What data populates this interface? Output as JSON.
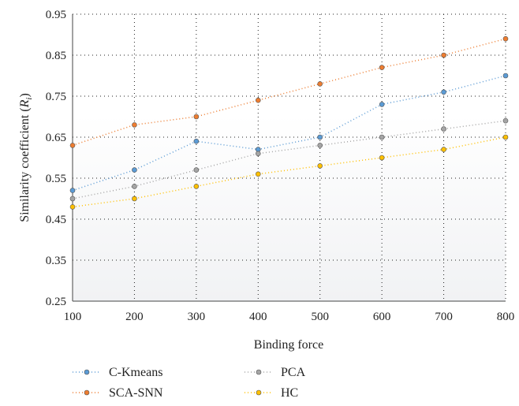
{
  "chart_data": {
    "type": "line",
    "xlabel": "Binding force",
    "ylabel_main": "Similarity coefficient (",
    "ylabel_var": "R",
    "ylabel_sub": "i",
    "ylabel_close": ")",
    "x": [
      100,
      200,
      300,
      400,
      500,
      600,
      700,
      800
    ],
    "x_ticks": [
      "100",
      "200",
      "300",
      "400",
      "500",
      "600",
      "700",
      "800"
    ],
    "xlim": [
      100,
      800
    ],
    "ylim": [
      0.25,
      0.95
    ],
    "y_ticks": [
      0.25,
      0.35,
      0.45,
      0.55,
      0.65,
      0.75,
      0.85,
      0.95
    ],
    "y_tick_labels": [
      "0.25",
      "0.35",
      "0.45",
      "0.55",
      "0.65",
      "0.75",
      "0.85",
      "0.95"
    ],
    "grid": true,
    "legend_position": "bottom",
    "series": [
      {
        "name": "C-Kmeans",
        "color": "#5b9bd5",
        "values": [
          0.52,
          0.57,
          0.64,
          0.62,
          0.65,
          0.73,
          0.76,
          0.8
        ]
      },
      {
        "name": "SCA-SNN",
        "color": "#ed7d31",
        "values": [
          0.63,
          0.68,
          0.7,
          0.74,
          0.78,
          0.82,
          0.85,
          0.89
        ]
      },
      {
        "name": "PCA",
        "color": "#a5a5a5",
        "values": [
          0.5,
          0.53,
          0.57,
          0.61,
          0.63,
          0.65,
          0.67,
          0.69
        ]
      },
      {
        "name": "HC",
        "color": "#ffc000",
        "values": [
          0.48,
          0.5,
          0.53,
          0.56,
          0.58,
          0.6,
          0.62,
          0.65
        ]
      }
    ]
  }
}
